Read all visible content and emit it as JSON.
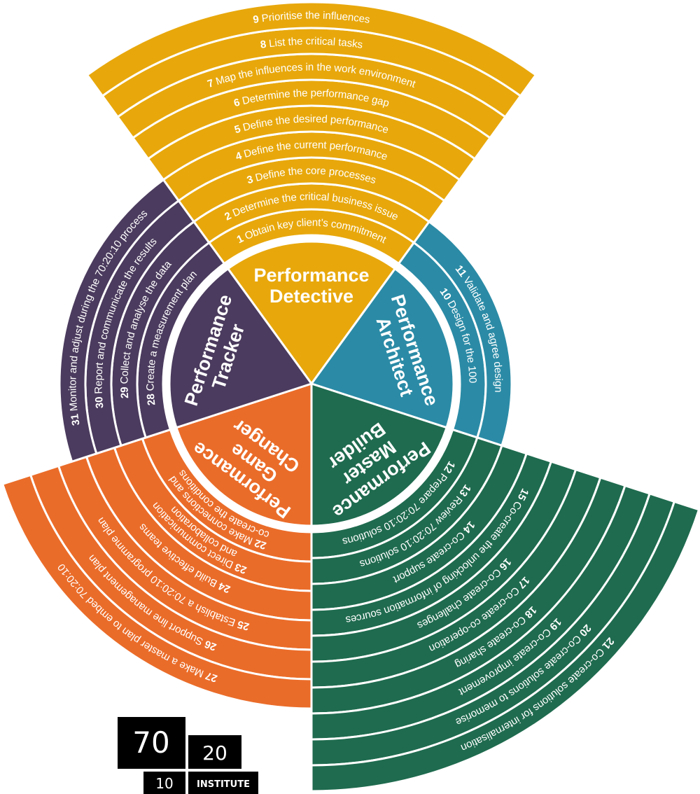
{
  "sectors": [
    {
      "title": [
        "Performance",
        "Detective"
      ],
      "color": "#e8a80c",
      "steps": [
        {
          "number": 1,
          "text": "Obtain key client’s commitment"
        },
        {
          "number": 2,
          "text": "Determine the critical business issue"
        },
        {
          "number": 3,
          "text": "Define the core processes"
        },
        {
          "number": 4,
          "text": "Define the current performance"
        },
        {
          "number": 5,
          "text": "Define the desired performance"
        },
        {
          "number": 6,
          "text": "Determine the performance gap"
        },
        {
          "number": 7,
          "text": "Map the influences in the work environment"
        },
        {
          "number": 8,
          "text": "List the critical tasks"
        },
        {
          "number": 9,
          "text": "Prioritise the influences"
        }
      ]
    },
    {
      "title": [
        "Performance",
        "Architect"
      ],
      "color": "#2b8ba6",
      "steps": [
        {
          "number": 10,
          "text": "Design for the 100"
        },
        {
          "number": 11,
          "text": "Validate and agree design"
        }
      ]
    },
    {
      "title": [
        "Performance",
        "Master",
        "Builder"
      ],
      "color": "#1f6b4f",
      "steps": [
        {
          "number": 12,
          "text": "Prepare 70:20:10 solutions"
        },
        {
          "number": 13,
          "text": "Review 70:20:10 solutions"
        },
        {
          "number": 14,
          "text": "Co-create support"
        },
        {
          "number": 15,
          "text": "Co-create the unlocking of information sources"
        },
        {
          "number": 16,
          "text": "Co-create challenges"
        },
        {
          "number": 17,
          "text": "Co-create co-operation"
        },
        {
          "number": 18,
          "text": "Co-create sharing"
        },
        {
          "number": 19,
          "text": "Co-create improvement"
        },
        {
          "number": 20,
          "text": "Co-create solutions to memorise"
        },
        {
          "number": 21,
          "text": "Co-create solutions for internalisation"
        }
      ]
    },
    {
      "title": [
        "Performance",
        "Game",
        "Changer"
      ],
      "color": "#ea6c29",
      "steps": [
        {
          "number": 22,
          "text": "Make connections and",
          "text2": "co-create the conditions"
        },
        {
          "number": 23,
          "text": "Direct communication",
          "text2": "and collaboration"
        },
        {
          "number": 24,
          "text": "Build effective teams"
        },
        {
          "number": 25,
          "text": "Establish a 70:20:10 programme plan"
        },
        {
          "number": 26,
          "text": "Support line management plan"
        },
        {
          "number": 27,
          "text": "Make a master plan to embed 70:20:10"
        }
      ]
    },
    {
      "title": [
        "Performance",
        "Tracker"
      ],
      "color": "#4b3b5e",
      "steps": [
        {
          "number": 28,
          "text": "Create a measurement plan"
        },
        {
          "number": 29,
          "text": "Collect and analyse the data"
        },
        {
          "number": 30,
          "text": "Report and communicate the results"
        },
        {
          "number": 31,
          "text": "Monitor and adjust during the 70:20:10 process"
        }
      ]
    }
  ],
  "logo": {
    "big": "70",
    "mid": "20",
    "small": "10",
    "label": "INSTITUTE"
  }
}
